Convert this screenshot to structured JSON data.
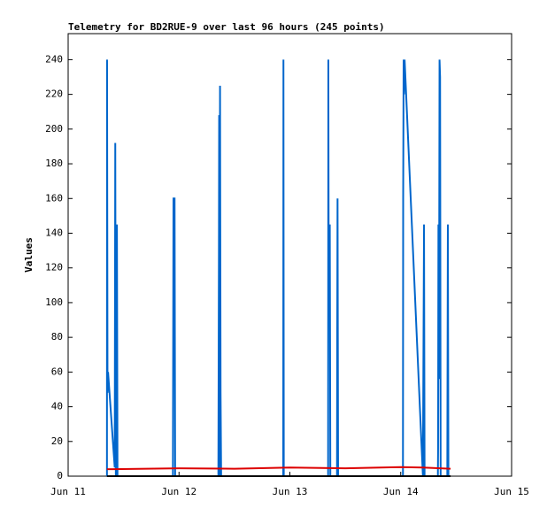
{
  "chart_data": {
    "type": "line",
    "title": "Telemetry for BD2RUE-9 over last 96 hours (245 points)",
    "y_label": "Values",
    "xlim": [
      11,
      15
    ],
    "xticks": [
      {
        "value": 11,
        "label": "Jun 11"
      },
      {
        "value": 12,
        "label": "Jun 12"
      },
      {
        "value": 13,
        "label": "Jun 13"
      },
      {
        "value": 14,
        "label": "Jun 14"
      },
      {
        "value": 15,
        "label": "Jun 15"
      }
    ],
    "ylim": [
      0,
      255
    ],
    "yticks": [
      0,
      20,
      40,
      60,
      80,
      100,
      120,
      140,
      160,
      180,
      200,
      220,
      240
    ],
    "series": [
      {
        "color": "#0066cc",
        "x": [
          11.35,
          11.351,
          11.355,
          11.36,
          11.42,
          11.425,
          11.43,
          11.44,
          11.445,
          11.945,
          11.95,
          11.96,
          11.965,
          12.355,
          12.36,
          12.362,
          12.365,
          12.37,
          12.375,
          12.38,
          12.94,
          12.942,
          12.945,
          13.345,
          13.347,
          13.35,
          13.36,
          13.365,
          13.425,
          13.427,
          13.43,
          13.435,
          14.02,
          14.022,
          14.026,
          14.03,
          14.035,
          14.2,
          14.205,
          14.21,
          14.215,
          14.335,
          14.337,
          14.34,
          14.345,
          14.35,
          14.355,
          14.36,
          14.42,
          14.425,
          14.43
        ],
        "values": [
          0,
          240,
          48,
          60,
          5,
          192,
          0,
          145,
          0,
          0,
          160,
          160,
          0,
          0,
          128,
          208,
          0,
          225,
          48,
          0,
          0,
          240,
          0,
          0,
          240,
          120,
          145,
          0,
          0,
          80,
          160,
          0,
          0,
          160,
          240,
          220,
          240,
          0,
          72,
          145,
          0,
          0,
          16,
          145,
          56,
          240,
          230,
          0,
          0,
          145,
          0
        ]
      },
      {
        "color": "#dd0000",
        "x": [
          11.35,
          12,
          12.5,
          13,
          13.5,
          14,
          14.2,
          14.45
        ],
        "values": [
          4,
          4.5,
          4.3,
          5,
          4.5,
          5.2,
          5,
          4.3
        ]
      },
      {
        "color": "#000000",
        "x": [
          11.35,
          14.45
        ],
        "values": [
          0,
          0
        ]
      }
    ]
  }
}
